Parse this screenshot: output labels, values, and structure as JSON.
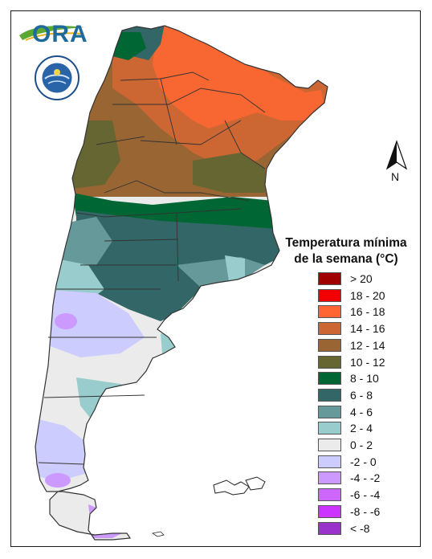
{
  "header": {
    "logo_text": "ORA",
    "seal_lettering": "SERVICIO METEOROLÓGICO NACIONAL ARGENTINA"
  },
  "map": {
    "north_label": "N",
    "colors": {
      "water_white": "#ffffff",
      "boundary": "#333333"
    }
  },
  "legend": {
    "title_line1": "Temperatura mínima",
    "title_line2": "de la semana (°C)",
    "items": [
      {
        "label": "> 20",
        "color": "#a10000"
      },
      {
        "label": "18 - 20",
        "color": "#f20000"
      },
      {
        "label": "16 - 18",
        "color": "#ff6633"
      },
      {
        "label": "14 - 16",
        "color": "#cc6633"
      },
      {
        "label": "12 - 14",
        "color": "#996633"
      },
      {
        "label": "10 - 12",
        "color": "#666633"
      },
      {
        "label": "8 - 10",
        "color": "#006633"
      },
      {
        "label": "6 - 8",
        "color": "#336666"
      },
      {
        "label": "4 - 6",
        "color": "#669999"
      },
      {
        "label": "2 - 4",
        "color": "#99cccc"
      },
      {
        "label": "0 - 2",
        "color": "#ebebeb"
      },
      {
        "label": "-2 - 0",
        "color": "#ccccff"
      },
      {
        "label": "-4 - -2",
        "color": "#cc99ff"
      },
      {
        "label": "-6 - -4",
        "color": "#cc66ff"
      },
      {
        "label": "-8 - -6",
        "color": "#cc33ff"
      },
      {
        "label": "< -8",
        "color": "#9933cc"
      }
    ]
  }
}
